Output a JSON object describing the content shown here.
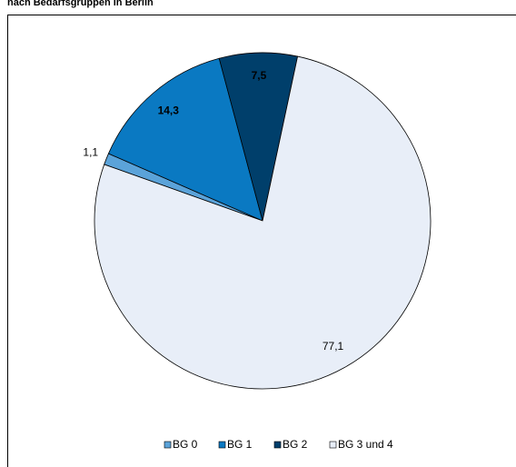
{
  "chart_data": {
    "type": "pie",
    "title": "nach Bedarfsgruppen in Berlin",
    "categories": [
      "BG 0",
      "BG 1",
      "BG 2",
      "BG 3 und 4"
    ],
    "values": [
      1.1,
      14.3,
      7.5,
      77.1
    ],
    "value_labels": [
      "1,1",
      "14,3",
      "7,5",
      "77,1"
    ],
    "colors": [
      "#5ba3d9",
      "#0a79c2",
      "#003f6b",
      "#e8eef8"
    ],
    "legend": "bottom"
  }
}
